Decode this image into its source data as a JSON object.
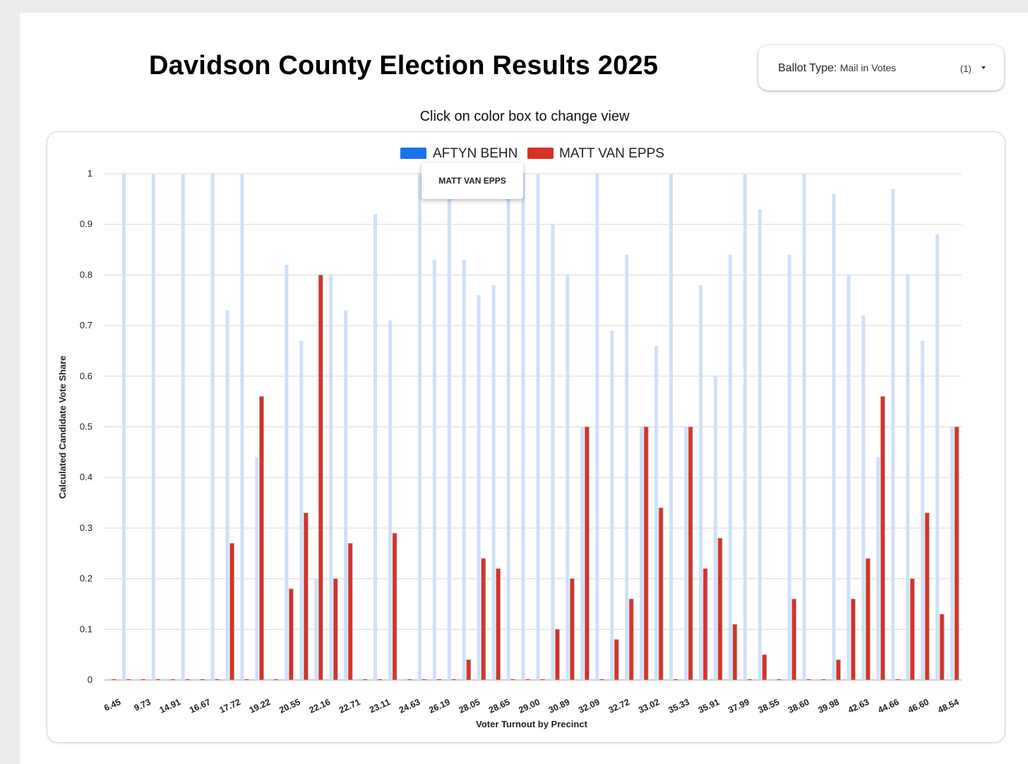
{
  "title": "Davidson County Election Results 2025",
  "subtitle": "Click on color box to change view",
  "ballot": {
    "label": "Ballot Type:",
    "value": "Mail in Votes",
    "count": "(1)"
  },
  "tooltip": {
    "text": "MATT VAN EPPS"
  },
  "icons": {
    "dropdown": "caret-down-icon"
  },
  "chart_data": {
    "type": "bar",
    "xlabel": "Voter Turnout by Precinct",
    "ylabel": "Calculated Candidate Vote Share",
    "ylim": [
      0,
      1
    ],
    "yticks": [
      "0",
      "0.1",
      "0.2",
      "0.3",
      "0.4",
      "0.5",
      "0.6",
      "0.7",
      "0.8",
      "0.9",
      "1"
    ],
    "grid": true,
    "legend_position": "top",
    "x_tick_labels": [
      "6.45",
      "9.73",
      "14.91",
      "16.67",
      "17.72",
      "19.22",
      "20.55",
      "22.16",
      "22.71",
      "23.11",
      "24.63",
      "26.19",
      "28.05",
      "28.65",
      "29.00",
      "30.89",
      "32.09",
      "32.72",
      "33.02",
      "35.33",
      "35.91",
      "37.99",
      "38.55",
      "38.60",
      "39.98",
      "42.63",
      "44.66",
      "46.60",
      "48.54"
    ],
    "series": [
      {
        "name": "AFTYN BEHN",
        "color": "#1a73e8",
        "faded_color": "#cfe0f7",
        "values": [
          0,
          1,
          0,
          1,
          0,
          1,
          0,
          1,
          0.73,
          1,
          0.44,
          0,
          0.82,
          0.67,
          0.2,
          0.8,
          0.73,
          0,
          0.92,
          0.71,
          0,
          1,
          0.83,
          1,
          0.83,
          0.76,
          0.78,
          1,
          1,
          1,
          0.9,
          0.8,
          0.5,
          1,
          0.69,
          0.84,
          0.5,
          0.66,
          1,
          0.5,
          0.78,
          0.6,
          0.84,
          1,
          0.93,
          0,
          0.84,
          1,
          0,
          0.96,
          0.8,
          0.72,
          0.44,
          0.97,
          0.8,
          0.67,
          0.88,
          0.5
        ]
      },
      {
        "name": "MATT VAN EPPS",
        "color": "#d93025",
        "values": [
          0,
          0,
          0,
          0,
          0,
          0,
          0,
          0,
          0.27,
          0,
          0.56,
          0,
          0.18,
          0.33,
          0.8,
          0.2,
          0.27,
          0,
          0,
          0.29,
          0,
          0,
          0,
          0,
          0.04,
          0.24,
          0.22,
          0,
          0,
          0,
          0.1,
          0.2,
          0.5,
          0,
          0.08,
          0.16,
          0.5,
          0.34,
          0,
          0.5,
          0.22,
          0.28,
          0.11,
          0,
          0.05,
          0,
          0.16,
          0,
          0,
          0.04,
          0.16,
          0.24,
          0.56,
          0,
          0.2,
          0.33,
          0.13,
          0.5
        ]
      }
    ]
  }
}
